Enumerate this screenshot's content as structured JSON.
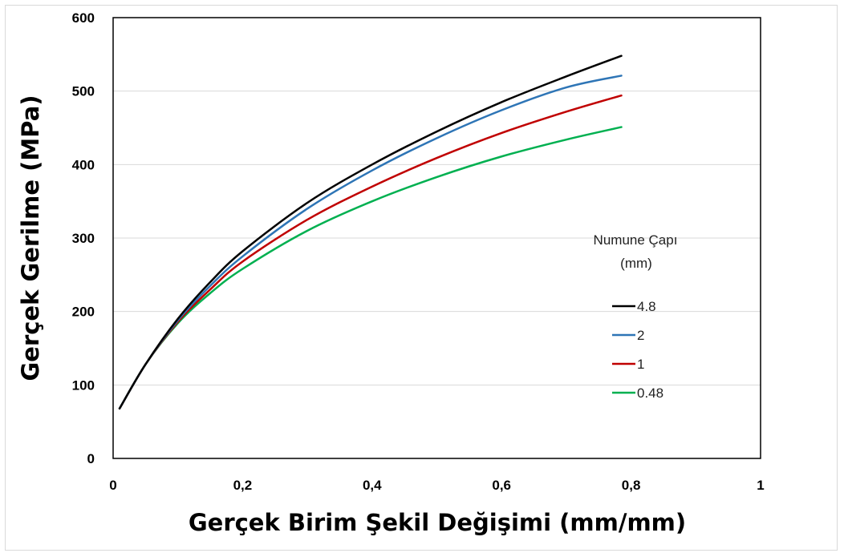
{
  "chart_data": {
    "type": "line",
    "title": "",
    "xlabel": "Gerçek Birim Şekil Değişimi (mm/mm)",
    "ylabel": "Gerçek Gerilme (MPa)",
    "xlim": [
      0,
      1
    ],
    "ylim": [
      0,
      600
    ],
    "x_ticks": [
      0,
      0.2,
      0.4,
      0.6,
      0.8,
      1
    ],
    "x_tick_labels": [
      "0",
      "0,2",
      "0,4",
      "0,6",
      "0,8",
      "1"
    ],
    "y_ticks": [
      0,
      100,
      200,
      300,
      400,
      500,
      600
    ],
    "y_tick_labels": [
      "0",
      "100",
      "200",
      "300",
      "400",
      "500",
      "600"
    ],
    "grid": "horizontal",
    "legend": {
      "title_line1": "Numune Çapı",
      "title_line2": "(mm)",
      "placement": "right"
    },
    "x": [
      0.01,
      0.05,
      0.1,
      0.15,
      0.2,
      0.3,
      0.4,
      0.5,
      0.6,
      0.7,
      0.785
    ],
    "series": [
      {
        "name": "4.8",
        "color": "#000000",
        "values": [
          68,
          128,
          190,
          240,
          282,
          348,
          400,
          445,
          485,
          520,
          548
        ]
      },
      {
        "name": "2",
        "color": "#2e75b6",
        "values": [
          68,
          128,
          188,
          235,
          275,
          340,
          392,
          436,
          474,
          505,
          521
        ]
      },
      {
        "name": "1",
        "color": "#c00000",
        "values": [
          68,
          128,
          186,
          230,
          268,
          325,
          370,
          409,
          443,
          472,
          494
        ]
      },
      {
        "name": "0.48",
        "color": "#00b050",
        "values": [
          68,
          128,
          184,
          225,
          258,
          310,
          350,
          383,
          411,
          434,
          451
        ]
      }
    ]
  }
}
